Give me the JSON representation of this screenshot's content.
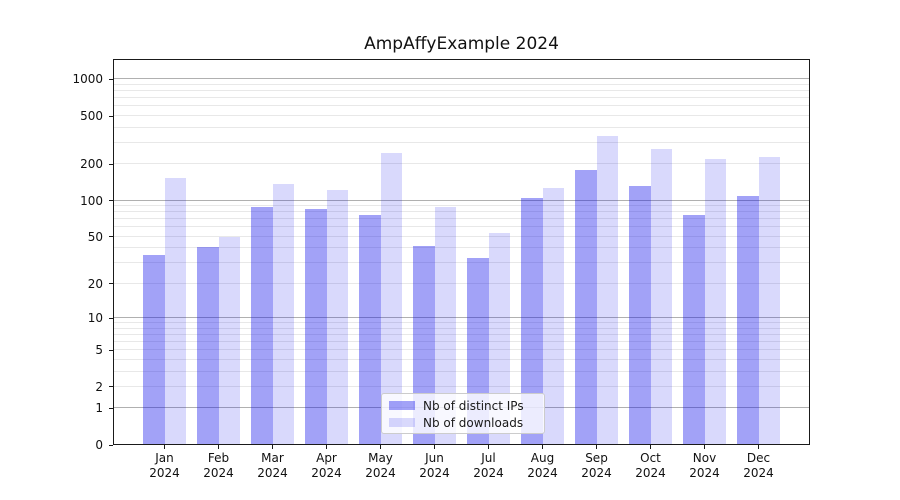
{
  "title": "AmpAffyExample 2024",
  "chart_data": {
    "type": "bar",
    "title": "AmpAffyExample 2024",
    "yscale": "log1p",
    "grid": true,
    "legend_position": "lower center",
    "categories": [
      "Jan",
      "Feb",
      "Mar",
      "Apr",
      "May",
      "Jun",
      "Jul",
      "Aug",
      "Sep",
      "Oct",
      "Nov",
      "Dec"
    ],
    "year_label": "2024",
    "series": [
      {
        "name": "Nb of distinct IPs",
        "color": "rgba(10,10,235,0.38)",
        "values": [
          35,
          41,
          89,
          86,
          76,
          42,
          33,
          105,
          181,
          133,
          76,
          109
        ]
      },
      {
        "name": "Nb of downloads",
        "color": "rgba(10,10,235,0.155)",
        "values": [
          155,
          50,
          137,
          123,
          246,
          88,
          54,
          128,
          342,
          270,
          222,
          229
        ]
      }
    ],
    "yticks": [
      0,
      1,
      2,
      5,
      10,
      20,
      50,
      100,
      200,
      500,
      1000
    ],
    "ylim": [
      0,
      1470
    ],
    "xlabel": "",
    "ylabel": ""
  },
  "colors": {
    "grid_major": "#b0b0b0",
    "grid_minor": "#e8e8e8",
    "spine": "#1a1a1a",
    "background": "#ffffff"
  }
}
